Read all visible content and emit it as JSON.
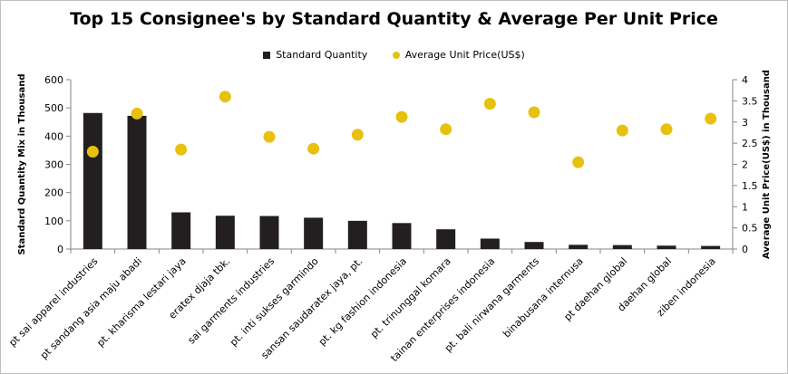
{
  "chart_data": {
    "type": "bar",
    "title": "Top 15 Consignee's by Standard Quantity & Average Per Unit Price",
    "ylabel": "Standard Quantity Mix in Thousand",
    "y2label": "Average Unit Price(US$) in Thousand",
    "ylim": [
      0,
      600
    ],
    "y2lim": [
      0,
      4
    ],
    "yticks": [
      "0",
      "100",
      "200",
      "300",
      "400",
      "500",
      "600"
    ],
    "y2ticks": [
      "0",
      "0.5",
      "1",
      "1.5",
      "2",
      "2.5",
      "3",
      "3.5",
      "4"
    ],
    "legend_position": "top",
    "grid": false,
    "categories": [
      "pt sai apparel industries",
      "pt sandang asia maju abadi",
      "pt. kharisma lestari jaya",
      "eratex djaja tbk.",
      "sai garments industries",
      "pt. inti sukses garmindo",
      "sansan saudaratex jaya, pt.",
      "pt. kg fashion indonesia",
      "pt. trinunggal komara",
      "tainan enterprises indonesia",
      "pt. bali nirwana garments",
      "binabusana internusa",
      "pt daehan global",
      "daehan global",
      "ziben indonesia"
    ],
    "series": [
      {
        "name": "Standard Quantity",
        "type": "bar",
        "axis": "left",
        "color": "#231f20",
        "values": [
          482,
          472,
          130,
          118,
          117,
          111,
          100,
          92,
          70,
          37,
          25,
          15,
          14,
          12,
          11
        ]
      },
      {
        "name": "Average Unit Price(US$)",
        "type": "scatter",
        "axis": "right",
        "color": "#e8c10e",
        "values": [
          2.3,
          3.2,
          2.35,
          3.6,
          2.65,
          2.37,
          2.7,
          3.12,
          2.83,
          3.43,
          3.23,
          2.05,
          2.8,
          2.83,
          3.08
        ]
      }
    ]
  }
}
